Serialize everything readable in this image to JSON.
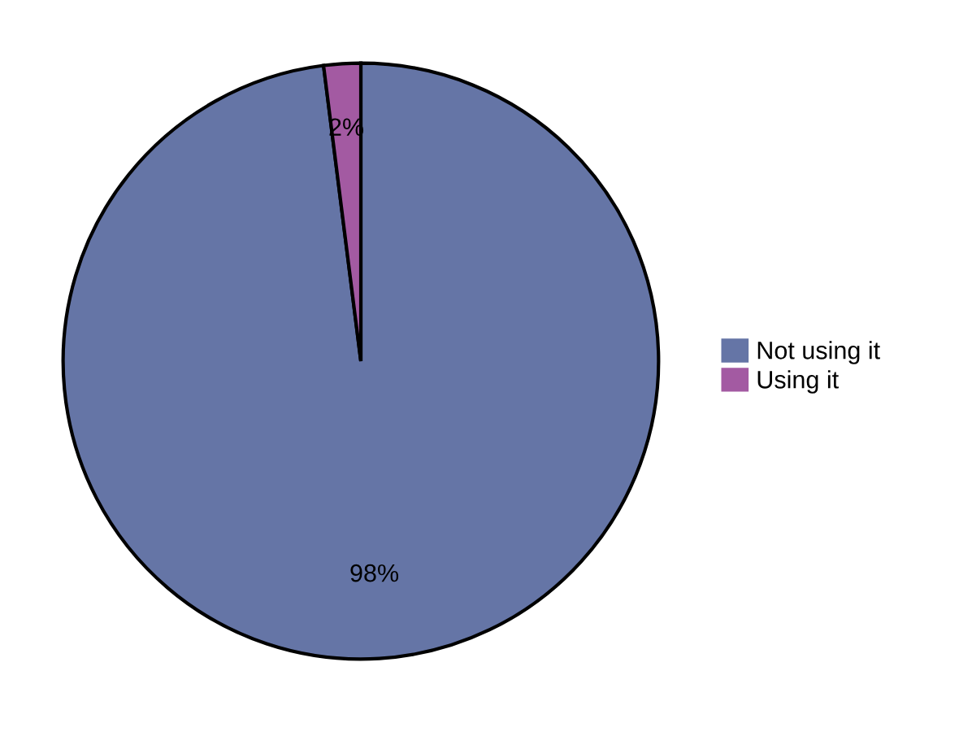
{
  "chart_data": {
    "type": "pie",
    "categories": [
      "Not using it",
      "Using it"
    ],
    "values": [
      98,
      2
    ],
    "value_labels": [
      "98%",
      "2%"
    ],
    "colors": [
      "#6575a6",
      "#a35aa2"
    ],
    "legend": "right"
  }
}
